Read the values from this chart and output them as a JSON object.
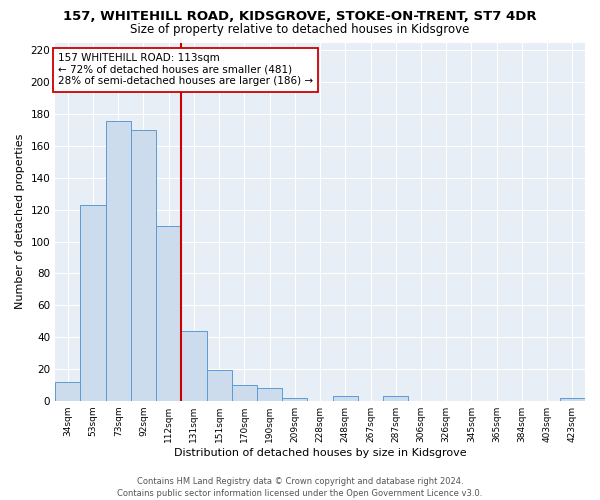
{
  "title": "157, WHITEHILL ROAD, KIDSGROVE, STOKE-ON-TRENT, ST7 4DR",
  "subtitle": "Size of property relative to detached houses in Kidsgrove",
  "xlabel": "Distribution of detached houses by size in Kidsgrove",
  "ylabel": "Number of detached properties",
  "bar_labels": [
    "34sqm",
    "53sqm",
    "73sqm",
    "92sqm",
    "112sqm",
    "131sqm",
    "151sqm",
    "170sqm",
    "190sqm",
    "209sqm",
    "228sqm",
    "248sqm",
    "267sqm",
    "287sqm",
    "306sqm",
    "326sqm",
    "345sqm",
    "365sqm",
    "384sqm",
    "403sqm",
    "423sqm"
  ],
  "bar_values": [
    12,
    123,
    176,
    170,
    110,
    44,
    19,
    10,
    8,
    2,
    0,
    3,
    0,
    3,
    0,
    0,
    0,
    0,
    0,
    0,
    2
  ],
  "bar_color": "#ccdcec",
  "bar_edge_color": "#5b9bd5",
  "vline_x": 4.5,
  "vline_color": "#cc0000",
  "annotation_text": "157 WHITEHILL ROAD: 113sqm\n← 72% of detached houses are smaller (481)\n28% of semi-detached houses are larger (186) →",
  "annotation_box_color": "#ffffff",
  "annotation_box_edge": "#cc0000",
  "ylim": [
    0,
    225
  ],
  "yticks": [
    0,
    20,
    40,
    60,
    80,
    100,
    120,
    140,
    160,
    180,
    200,
    220
  ],
  "footer": "Contains HM Land Registry data © Crown copyright and database right 2024.\nContains public sector information licensed under the Open Government Licence v3.0.",
  "fig_bg_color": "#ffffff",
  "plot_bg_color": "#e8eef5"
}
